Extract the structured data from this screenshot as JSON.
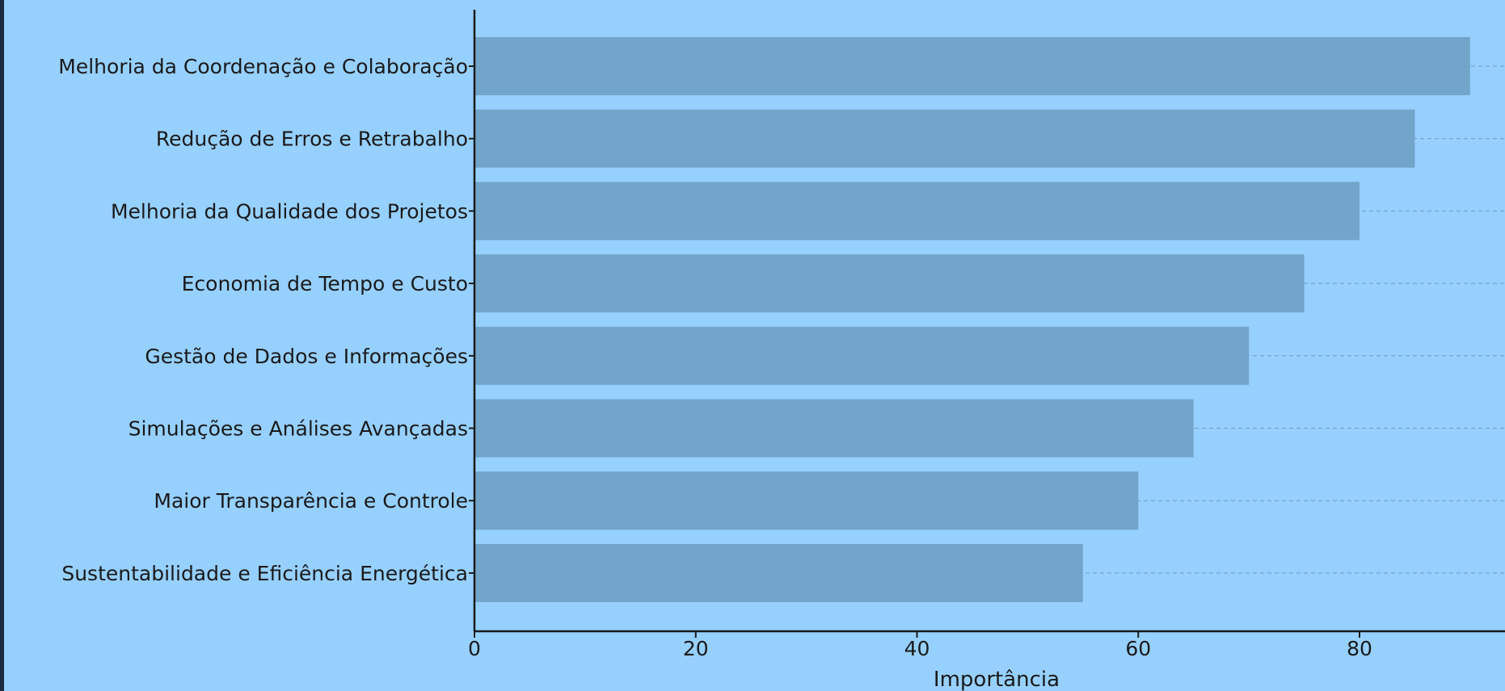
{
  "chart_data": {
    "type": "bar",
    "orientation": "horizontal",
    "categories": [
      "Melhoria da Coordenação e Colaboração",
      "Redução de Erros e Retrabalho",
      "Melhoria da Qualidade dos Projetos",
      "Economia de Tempo e Custo",
      "Gestão de Dados e Informações",
      "Simulações e Análises Avançadas",
      "Maior Transparência e Controle",
      "Sustentabilidade e Eficiência Energética"
    ],
    "values": [
      90,
      85,
      80,
      75,
      70,
      65,
      60,
      55
    ],
    "xlabel": "Importância",
    "ylabel": "",
    "title": "",
    "xlim": [
      0,
      94
    ],
    "xticks": [
      0,
      20,
      40,
      60,
      80
    ],
    "grid": "horizontal dashed lines at bar centers",
    "colors": {
      "background": "#96d0fe",
      "bar": "#709fc4",
      "axis": "#1a1a1a",
      "grid": "#6c9cc4"
    }
  }
}
